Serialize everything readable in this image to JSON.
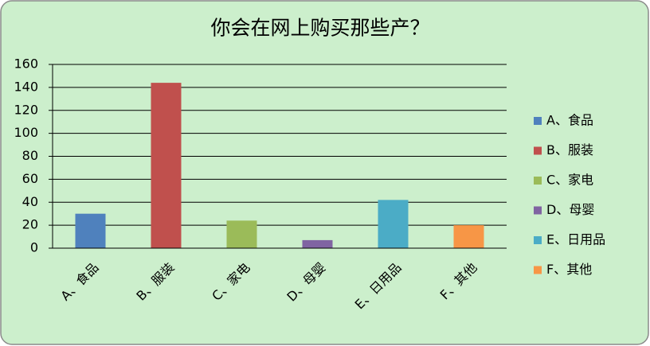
{
  "chart_data": {
    "type": "bar",
    "title": "你会在网上购买那些产？",
    "categories": [
      "A、食品",
      "B、服装",
      "C、家电",
      "D、母婴",
      "E、日用品",
      "F、其他"
    ],
    "values": [
      30,
      144,
      24,
      7,
      42,
      20
    ],
    "colors": [
      "#4f81bd",
      "#c0504d",
      "#9bbb59",
      "#8064a2",
      "#4bacc6",
      "#f79646"
    ],
    "ylim": [
      0,
      160
    ],
    "yticks": [
      0,
      20,
      40,
      60,
      80,
      100,
      120,
      140,
      160
    ],
    "grid": true,
    "legend": "right"
  }
}
